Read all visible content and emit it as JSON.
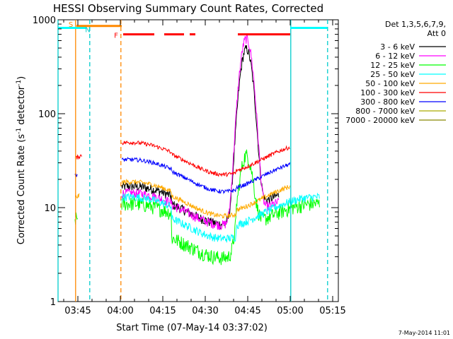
{
  "chart_data": {
    "type": "line",
    "title": "HESSI Observing Summary Count Rates, Corrected",
    "xlabel": "Start Time (07-May-14 03:37:02)",
    "ylabel_main": "Corrected Count Rate (s",
    "ylabel_sup1": "-1",
    "ylabel_mid": " detector",
    "ylabel_sup2": "-1",
    "ylabel_end": ")",
    "yscale": "log",
    "ylim": [
      1,
      1000
    ],
    "xlim_minutes": [
      38,
      137
    ],
    "x_unit": "minutes after 03:00 UT",
    "y_ticks": [
      {
        "value": 1,
        "label": "1"
      },
      {
        "value": 10,
        "label": "10"
      },
      {
        "value": 100,
        "label": "100"
      },
      {
        "value": 1000,
        "label": "1000"
      }
    ],
    "x_ticks": [
      {
        "value": 45,
        "label": "03:45"
      },
      {
        "value": 60,
        "label": "04:00"
      },
      {
        "value": 75,
        "label": "04:15"
      },
      {
        "value": 90,
        "label": "04:30"
      },
      {
        "value": 105,
        "label": "04:45"
      },
      {
        "value": 120,
        "label": "05:00"
      },
      {
        "value": 135,
        "label": "05:15"
      }
    ],
    "legend_header": [
      "Det 1,3,5,6,7,9,",
      "Att 0"
    ],
    "legend_position": "right",
    "series": [
      {
        "name": "3 - 6 keV",
        "color": "#000000",
        "base": 13,
        "dip": 0.82,
        "flare_peak": 480,
        "segments": [
          [
            60.5,
            116
          ]
        ],
        "noise": 0.12
      },
      {
        "name": "6 - 12 keV",
        "color": "#ff00ff",
        "base": 11,
        "dip": 0.95,
        "flare_peak": 620,
        "segments": [
          [
            60.5,
            116
          ]
        ],
        "noise": 0.12
      },
      {
        "name": "12 - 25 keV",
        "color": "#00ff00",
        "base": 8.5,
        "dip": 0.55,
        "flare_peak": 30,
        "segments": [
          [
            44,
            45
          ],
          [
            60.5,
            130.5
          ]
        ],
        "noise": 0.18
      },
      {
        "name": "25 - 50 keV",
        "color": "#00ffff",
        "base": 10,
        "dip": 0.75,
        "flare_peak": 0,
        "segments": [
          [
            60.5,
            130.5
          ]
        ],
        "noise": 0.1
      },
      {
        "name": "50 - 100 keV",
        "color": "#ffaa00",
        "base": 14.5,
        "dip": 0.9,
        "flare_peak": 0,
        "segments": [
          [
            44,
            45.5
          ],
          [
            60.5,
            120
          ]
        ],
        "noise": 0.06
      },
      {
        "name": "100 - 300 keV",
        "color": "#ff0000",
        "base": 38,
        "dip": 0.95,
        "flare_peak": 0,
        "segments": [
          [
            44,
            46.5
          ],
          [
            60.5,
            120
          ]
        ],
        "noise": 0.05
      },
      {
        "name": "300 - 800 keV",
        "color": "#0000ff",
        "base": 25,
        "dip": 0.95,
        "flare_peak": 0,
        "segments": [
          [
            44,
            45
          ],
          [
            60.5,
            120
          ]
        ],
        "noise": 0.05
      },
      {
        "name": "800 - 7000 keV",
        "color": "#aaaa00",
        "base": 0,
        "dip": 1,
        "flare_peak": 0,
        "segments": [],
        "noise": 0
      },
      {
        "name": "7000 - 20000 keV",
        "color": "#888800",
        "base": 0,
        "dip": 1,
        "flare_peak": 0,
        "segments": [],
        "noise": 0
      }
    ],
    "flag_bars": [
      {
        "label": "S",
        "color": "#ff8800",
        "x_start": 44.5,
        "x_end": 60.5,
        "y_value": 860
      },
      {
        "label": "F",
        "color": "#ff0000",
        "x_start": 61,
        "x_end": 120,
        "y_value": 700,
        "gaps": [
          [
            72,
            75.5
          ],
          [
            82.5,
            84.5
          ],
          [
            86.5,
            101.5
          ]
        ]
      }
    ],
    "flag_labels": [
      {
        "text": "S",
        "x_value": 42.5,
        "y_value": 900,
        "color": "#ff8800"
      },
      {
        "text": "N",
        "x_value": 48.5,
        "y_value": 790,
        "color": "#00cccc"
      },
      {
        "text": "F",
        "x_value": 58.5,
        "y_value": 690,
        "color": "#ff0000"
      }
    ],
    "cyan_bars": [
      {
        "x_start": 38,
        "x_end": 48,
        "y_value": 820
      },
      {
        "x_start": 120,
        "x_end": 133,
        "y_value": 820
      }
    ],
    "vertical_lines": [
      {
        "x_value": 38,
        "color": "#00cccc",
        "dash": false
      },
      {
        "x_value": 44.2,
        "color": "#ff8800",
        "dash": false
      },
      {
        "x_value": 49.2,
        "color": "#00cccc",
        "dash": true
      },
      {
        "x_value": 60.2,
        "color": "#ff8800",
        "dash": true
      },
      {
        "x_value": 120.2,
        "color": "#00cccc",
        "dash": false
      },
      {
        "x_value": 133.2,
        "color": "#00cccc",
        "dash": true
      }
    ],
    "timestamp": "7-May-2014 11:01"
  }
}
